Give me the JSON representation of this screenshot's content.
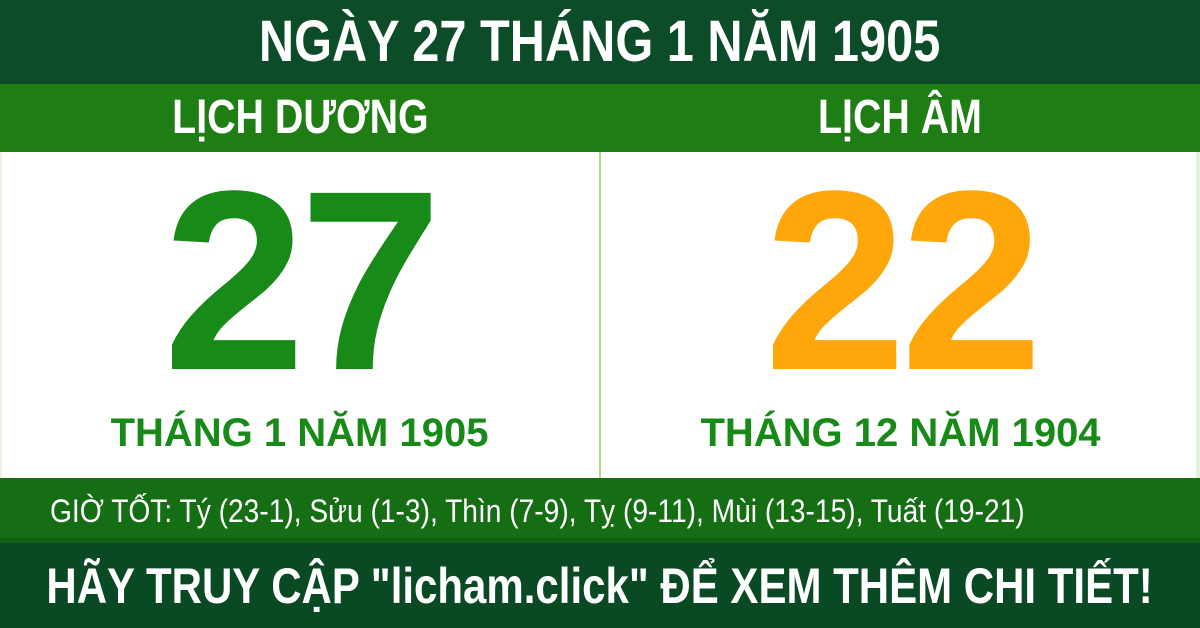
{
  "header": {
    "title": "NGÀY 27 THÁNG 1 NĂM 1905"
  },
  "calendar": {
    "solar": {
      "label": "LỊCH DƯƠNG",
      "day": "27",
      "month_year": "THÁNG 1 NĂM 1905"
    },
    "lunar": {
      "label": "LỊCH ÂM",
      "day": "22",
      "month_year": "THÁNG 12 NĂM 1904"
    }
  },
  "good_hours": {
    "text": "GIỜ TỐT: Tý (23-1), Sửu (1-3), Thìn (7-9), Tỵ (9-11), Mùi (13-15), Tuất (19-21)"
  },
  "footer": {
    "text": "HÃY TRUY CẬP \"licham.click\" ĐỂ XEM THÊM CHI TIẾT!"
  },
  "colors": {
    "top_bar": "#0d4c29",
    "header_bar": "#1e7d13",
    "panel_bg": "#ffffff",
    "divider": "#b2d98e",
    "solar_day": "#178a17",
    "lunar_day": "#ffa60a",
    "month_text": "#178a17",
    "hours_bar": "#156e13",
    "footer_bar": "#094a25",
    "text_light": "#ffffff"
  }
}
